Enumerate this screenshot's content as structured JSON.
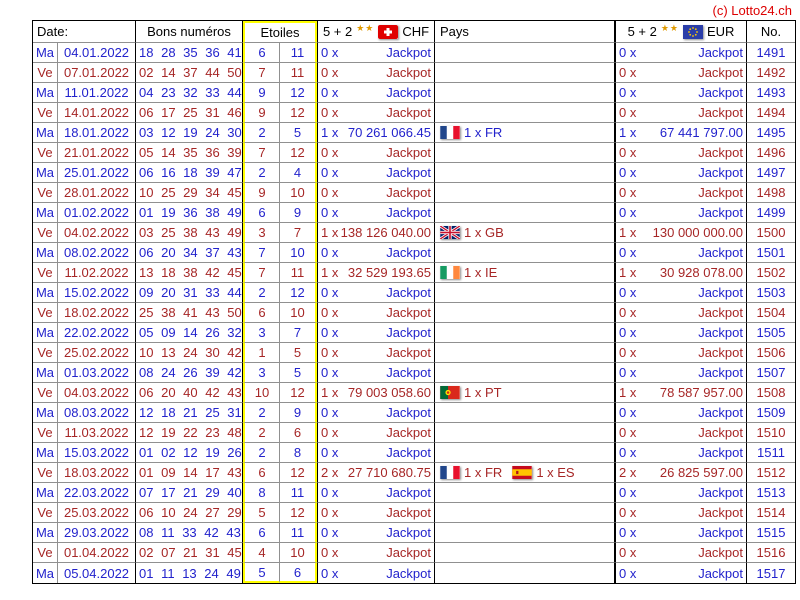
{
  "copyright": "(c) Lotto24.ch",
  "colors": {
    "ma_row_blue": "#2222CC",
    "ve_row_red": "#A62626",
    "highlight_yellow": "#FFFF00",
    "copyright_red": "#DD0000"
  },
  "header": {
    "date": "Date:",
    "numbers": "Bons numéros",
    "stars": "Etoiles",
    "chf_prefix": "5 + 2",
    "chf_stars_glyph": "★★",
    "chf_flag_icon": "swiss-flag-icon",
    "chf_currency": "CHF",
    "pays": "Pays",
    "eur_prefix": "5 + 2",
    "eur_stars_glyph": "★★",
    "eur_flag_icon": "eu-flag-icon",
    "eur_currency": "EUR",
    "no": "No."
  },
  "rows": [
    {
      "day": "Ma",
      "date": "04.01.2022",
      "numbers": "18 28 35 36 41",
      "star1": "6",
      "star2": "11",
      "chf_count": "0 x",
      "chf_amount": "Jackpot",
      "pays": [],
      "eur_count": "0 x",
      "eur_amount": "Jackpot",
      "no": "1491"
    },
    {
      "day": "Ve",
      "date": "07.01.2022",
      "numbers": "02 14 37 44 50",
      "star1": "7",
      "star2": "11",
      "chf_count": "0 x",
      "chf_amount": "Jackpot",
      "pays": [],
      "eur_count": "0 x",
      "eur_amount": "Jackpot",
      "no": "1492"
    },
    {
      "day": "Ma",
      "date": "11.01.2022",
      "numbers": "04 23 32 33 44",
      "star1": "9",
      "star2": "12",
      "chf_count": "0 x",
      "chf_amount": "Jackpot",
      "pays": [],
      "eur_count": "0 x",
      "eur_amount": "Jackpot",
      "no": "1493"
    },
    {
      "day": "Ve",
      "date": "14.01.2022",
      "numbers": "06 17 25 31 46",
      "star1": "9",
      "star2": "12",
      "chf_count": "0 x",
      "chf_amount": "Jackpot",
      "pays": [],
      "eur_count": "0 x",
      "eur_amount": "Jackpot",
      "no": "1494"
    },
    {
      "day": "Ma",
      "date": "18.01.2022",
      "numbers": "03 12 19 24 30",
      "star1": "2",
      "star2": "5",
      "chf_count": "1 x",
      "chf_amount": "70 261 066.45",
      "pays": [
        {
          "flag": "fr",
          "label": "1 x FR"
        }
      ],
      "eur_count": "1 x",
      "eur_amount": "67 441 797.00",
      "no": "1495"
    },
    {
      "day": "Ve",
      "date": "21.01.2022",
      "numbers": "05 14 35 36 39",
      "star1": "7",
      "star2": "12",
      "chf_count": "0 x",
      "chf_amount": "Jackpot",
      "pays": [],
      "eur_count": "0 x",
      "eur_amount": "Jackpot",
      "no": "1496"
    },
    {
      "day": "Ma",
      "date": "25.01.2022",
      "numbers": "06 16 18 39 47",
      "star1": "2",
      "star2": "4",
      "chf_count": "0 x",
      "chf_amount": "Jackpot",
      "pays": [],
      "eur_count": "0 x",
      "eur_amount": "Jackpot",
      "no": "1497"
    },
    {
      "day": "Ve",
      "date": "28.01.2022",
      "numbers": "10 25 29 34 45",
      "star1": "9",
      "star2": "10",
      "chf_count": "0 x",
      "chf_amount": "Jackpot",
      "pays": [],
      "eur_count": "0 x",
      "eur_amount": "Jackpot",
      "no": "1498"
    },
    {
      "day": "Ma",
      "date": "01.02.2022",
      "numbers": "01 19 36 38 49",
      "star1": "6",
      "star2": "9",
      "chf_count": "0 x",
      "chf_amount": "Jackpot",
      "pays": [],
      "eur_count": "0 x",
      "eur_amount": "Jackpot",
      "no": "1499"
    },
    {
      "day": "Ve",
      "date": "04.02.2022",
      "numbers": "03 25 38 43 49",
      "star1": "3",
      "star2": "7",
      "chf_count": "1 x",
      "chf_amount": "138 126 040.00",
      "pays": [
        {
          "flag": "gb",
          "label": "1 x GB"
        }
      ],
      "eur_count": "1 x",
      "eur_amount": "130 000 000.00",
      "no": "1500"
    },
    {
      "day": "Ma",
      "date": "08.02.2022",
      "numbers": "06 20 34 37 43",
      "star1": "7",
      "star2": "10",
      "chf_count": "0 x",
      "chf_amount": "Jackpot",
      "pays": [],
      "eur_count": "0 x",
      "eur_amount": "Jackpot",
      "no": "1501"
    },
    {
      "day": "Ve",
      "date": "11.02.2022",
      "numbers": "13 18 38 42 45",
      "star1": "7",
      "star2": "11",
      "chf_count": "1 x",
      "chf_amount": "32 529 193.65",
      "pays": [
        {
          "flag": "ie",
          "label": "1 x IE"
        }
      ],
      "eur_count": "1 x",
      "eur_amount": "30 928 078.00",
      "no": "1502"
    },
    {
      "day": "Ma",
      "date": "15.02.2022",
      "numbers": "09 20 31 33 44",
      "star1": "2",
      "star2": "12",
      "chf_count": "0 x",
      "chf_amount": "Jackpot",
      "pays": [],
      "eur_count": "0 x",
      "eur_amount": "Jackpot",
      "no": "1503"
    },
    {
      "day": "Ve",
      "date": "18.02.2022",
      "numbers": "25 38 41 43 50",
      "star1": "6",
      "star2": "10",
      "chf_count": "0 x",
      "chf_amount": "Jackpot",
      "pays": [],
      "eur_count": "0 x",
      "eur_amount": "Jackpot",
      "no": "1504"
    },
    {
      "day": "Ma",
      "date": "22.02.2022",
      "numbers": "05 09 14 26 32",
      "star1": "3",
      "star2": "7",
      "chf_count": "0 x",
      "chf_amount": "Jackpot",
      "pays": [],
      "eur_count": "0 x",
      "eur_amount": "Jackpot",
      "no": "1505"
    },
    {
      "day": "Ve",
      "date": "25.02.2022",
      "numbers": "10 13 24 30 42",
      "star1": "1",
      "star2": "5",
      "chf_count": "0 x",
      "chf_amount": "Jackpot",
      "pays": [],
      "eur_count": "0 x",
      "eur_amount": "Jackpot",
      "no": "1506"
    },
    {
      "day": "Ma",
      "date": "01.03.2022",
      "numbers": "08 24 26 39 42",
      "star1": "3",
      "star2": "5",
      "chf_count": "0 x",
      "chf_amount": "Jackpot",
      "pays": [],
      "eur_count": "0 x",
      "eur_amount": "Jackpot",
      "no": "1507"
    },
    {
      "day": "Ve",
      "date": "04.03.2022",
      "numbers": "06 20 40 42 43",
      "star1": "10",
      "star2": "12",
      "chf_count": "1 x",
      "chf_amount": "79 003 058.60",
      "pays": [
        {
          "flag": "pt",
          "label": "1 x PT"
        }
      ],
      "eur_count": "1 x",
      "eur_amount": "78 587 957.00",
      "no": "1508"
    },
    {
      "day": "Ma",
      "date": "08.03.2022",
      "numbers": "12 18 21 25 31",
      "star1": "2",
      "star2": "9",
      "chf_count": "0 x",
      "chf_amount": "Jackpot",
      "pays": [],
      "eur_count": "0 x",
      "eur_amount": "Jackpot",
      "no": "1509"
    },
    {
      "day": "Ve",
      "date": "11.03.2022",
      "numbers": "12 19 22 23 48",
      "star1": "2",
      "star2": "6",
      "chf_count": "0 x",
      "chf_amount": "Jackpot",
      "pays": [],
      "eur_count": "0 x",
      "eur_amount": "Jackpot",
      "no": "1510"
    },
    {
      "day": "Ma",
      "date": "15.03.2022",
      "numbers": "01 02 12 19 26",
      "star1": "2",
      "star2": "8",
      "chf_count": "0 x",
      "chf_amount": "Jackpot",
      "pays": [],
      "eur_count": "0 x",
      "eur_amount": "Jackpot",
      "no": "1511"
    },
    {
      "day": "Ve",
      "date": "18.03.2022",
      "numbers": "01 09 14 17 43",
      "star1": "6",
      "star2": "12",
      "chf_count": "2 x",
      "chf_amount": "27 710 680.75",
      "pays": [
        {
          "flag": "fr",
          "label": "1 x FR"
        },
        {
          "flag": "es",
          "label": "1 x ES"
        }
      ],
      "eur_count": "2 x",
      "eur_amount": "26 825 597.00",
      "no": "1512"
    },
    {
      "day": "Ma",
      "date": "22.03.2022",
      "numbers": "07 17 21 29 40",
      "star1": "8",
      "star2": "11",
      "chf_count": "0 x",
      "chf_amount": "Jackpot",
      "pays": [],
      "eur_count": "0 x",
      "eur_amount": "Jackpot",
      "no": "1513"
    },
    {
      "day": "Ve",
      "date": "25.03.2022",
      "numbers": "06 10 24 27 29",
      "star1": "5",
      "star2": "12",
      "chf_count": "0 x",
      "chf_amount": "Jackpot",
      "pays": [],
      "eur_count": "0 x",
      "eur_amount": "Jackpot",
      "no": "1514"
    },
    {
      "day": "Ma",
      "date": "29.03.2022",
      "numbers": "08 11 33 42 43",
      "star1": "6",
      "star2": "11",
      "chf_count": "0 x",
      "chf_amount": "Jackpot",
      "pays": [],
      "eur_count": "0 x",
      "eur_amount": "Jackpot",
      "no": "1515"
    },
    {
      "day": "Ve",
      "date": "01.04.2022",
      "numbers": "02 07 21 31 45",
      "star1": "4",
      "star2": "10",
      "chf_count": "0 x",
      "chf_amount": "Jackpot",
      "pays": [],
      "eur_count": "0 x",
      "eur_amount": "Jackpot",
      "no": "1516"
    },
    {
      "day": "Ma",
      "date": "05.04.2022",
      "numbers": "01 11 13 24 49",
      "star1": "5",
      "star2": "6",
      "chf_count": "0 x",
      "chf_amount": "Jackpot",
      "pays": [],
      "eur_count": "0 x",
      "eur_amount": "Jackpot",
      "no": "1517"
    }
  ]
}
